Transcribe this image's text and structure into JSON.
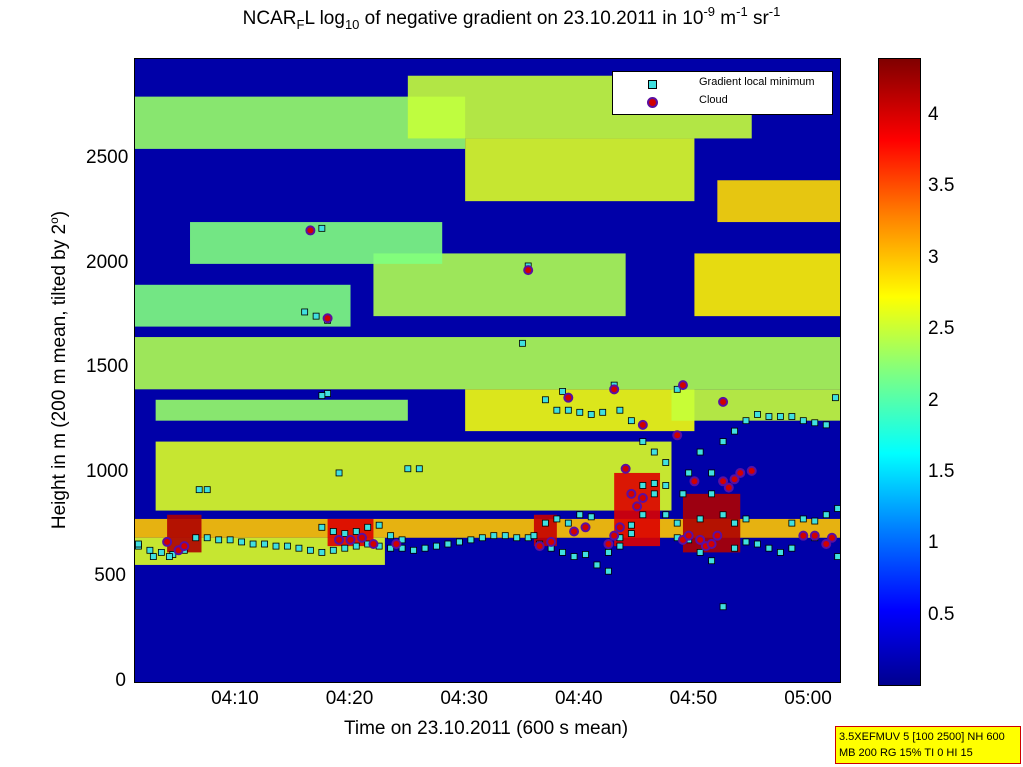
{
  "title_parts": {
    "a": "NCAR",
    "sub1": "F",
    "b": "L log",
    "sub2": "10",
    "c": " of negative gradient on 23.10.2011 in 10",
    "sup1": "-9",
    "d": " m",
    "sup2": "-1",
    "e": " sr",
    "sup3": "-1"
  },
  "ylabel_parts": {
    "a": "Height in m (200 m mean, tilted by 2",
    "sup": "o",
    "b": ")"
  },
  "info": {
    "line1": "3.5XEFMUV 5 [100 2500] NH 600",
    "line2": "MB 200 RG 15% TI 0 HI 15"
  },
  "colors": {
    "cloud_fill": "#d00000",
    "cloud_edge": "#5b0fa0",
    "minimum_fill": "#40e0e0",
    "minimum_edge": "#000000",
    "background": "#0000a8"
  },
  "chart_data": {
    "type": "heatmap",
    "xlabel": "Time on 23.10.2011 (600 s mean)",
    "ylabel": "Height in m (200 m mean, tilted by 2°)",
    "x_ticks": [
      "04:10",
      "04:20",
      "04:30",
      "04:40",
      "04:50",
      "05:00"
    ],
    "y_ticks": [
      0,
      500,
      1000,
      1500,
      2000,
      2500
    ],
    "ylim": [
      0,
      2980
    ],
    "xlim_minutes_after_0400": [
      1.2,
      62.7
    ],
    "colorbar": {
      "ticks": [
        0.5,
        1,
        1.5,
        2,
        2.5,
        3,
        3.5,
        4
      ],
      "range": [
        0,
        4.4
      ],
      "colormap": "jet"
    },
    "legend": {
      "placement": "top-right",
      "entries": [
        "Gradient local minimum",
        "Cloud"
      ]
    },
    "layers": [
      {
        "t0": 1.2,
        "t1": 62.7,
        "h0": 690,
        "h1": 780,
        "v": 3.0
      },
      {
        "t0": 1.2,
        "t1": 23,
        "h0": 560,
        "h1": 690,
        "v": 2.6
      },
      {
        "t0": 3,
        "t1": 48,
        "h0": 820,
        "h1": 1150,
        "v": 2.6
      },
      {
        "t0": 3,
        "t1": 25,
        "h0": 1250,
        "h1": 1350,
        "v": 2.3
      },
      {
        "t0": 30,
        "t1": 50,
        "h0": 1200,
        "h1": 1400,
        "v": 2.7
      },
      {
        "t0": 48,
        "t1": 62.7,
        "h0": 1250,
        "h1": 1400,
        "v": 2.5
      },
      {
        "t0": 1.2,
        "t1": 62.7,
        "h0": 1400,
        "h1": 1650,
        "v": 2.4
      },
      {
        "t0": 1.2,
        "t1": 20,
        "h0": 1700,
        "h1": 1900,
        "v": 2.2
      },
      {
        "t0": 22,
        "t1": 44,
        "h0": 1750,
        "h1": 2050,
        "v": 2.4
      },
      {
        "t0": 50,
        "t1": 62.7,
        "h0": 1750,
        "h1": 2050,
        "v": 2.8
      },
      {
        "t0": 6,
        "t1": 28,
        "h0": 2000,
        "h1": 2200,
        "v": 2.2
      },
      {
        "t0": 30,
        "t1": 50,
        "h0": 2300,
        "h1": 2600,
        "v": 2.6
      },
      {
        "t0": 52,
        "t1": 62.7,
        "h0": 2200,
        "h1": 2400,
        "v": 2.9
      },
      {
        "t0": 1.2,
        "t1": 30,
        "h0": 2550,
        "h1": 2800,
        "v": 2.3
      },
      {
        "t0": 25,
        "t1": 55,
        "h0": 2600,
        "h1": 2900,
        "v": 2.5
      },
      {
        "t0": 4,
        "t1": 7,
        "h0": 620,
        "h1": 800,
        "v": 4.2
      },
      {
        "t0": 18,
        "t1": 22,
        "h0": 650,
        "h1": 780,
        "v": 4.0
      },
      {
        "t0": 36,
        "t1": 38,
        "h0": 650,
        "h1": 800,
        "v": 4.1
      },
      {
        "t0": 43,
        "t1": 47,
        "h0": 650,
        "h1": 1000,
        "v": 4.0
      },
      {
        "t0": 49,
        "t1": 54,
        "h0": 620,
        "h1": 900,
        "v": 4.2
      }
    ],
    "series": [
      {
        "name": "Gradient local minimum",
        "points": [
          [
            1.5,
            650
          ],
          [
            2.5,
            630
          ],
          [
            3.5,
            620
          ],
          [
            4.5,
            610
          ],
          [
            5.5,
            630
          ],
          [
            6.5,
            690
          ],
          [
            7.5,
            690
          ],
          [
            8.5,
            680
          ],
          [
            9.5,
            680
          ],
          [
            10.5,
            670
          ],
          [
            11.5,
            660
          ],
          [
            12.5,
            660
          ],
          [
            13.5,
            650
          ],
          [
            14.5,
            650
          ],
          [
            15.5,
            640
          ],
          [
            16.5,
            630
          ],
          [
            17.5,
            620
          ],
          [
            18.5,
            630
          ],
          [
            19.5,
            640
          ],
          [
            20.5,
            650
          ],
          [
            21.5,
            660
          ],
          [
            22.5,
            650
          ],
          [
            23.5,
            640
          ],
          [
            24.5,
            640
          ],
          [
            25.5,
            630
          ],
          [
            26.5,
            640
          ],
          [
            27.5,
            650
          ],
          [
            28.5,
            660
          ],
          [
            29.5,
            670
          ],
          [
            30.5,
            680
          ],
          [
            31.5,
            690
          ],
          [
            32.5,
            700
          ],
          [
            33.5,
            700
          ],
          [
            34.5,
            690
          ],
          [
            35.5,
            690
          ],
          [
            36.5,
            660
          ],
          [
            37.5,
            640
          ],
          [
            38.5,
            620
          ],
          [
            39.5,
            600
          ],
          [
            40.5,
            610
          ],
          [
            41.5,
            560
          ],
          [
            42.5,
            530
          ],
          [
            43.5,
            690
          ],
          [
            44.5,
            750
          ],
          [
            45.5,
            940
          ],
          [
            46.5,
            950
          ],
          [
            47.5,
            940
          ],
          [
            48.5,
            690
          ],
          [
            49.5,
            680
          ],
          [
            50.5,
            620
          ],
          [
            51.5,
            580
          ],
          [
            52.5,
            360
          ],
          [
            53.5,
            640
          ],
          [
            54.5,
            670
          ],
          [
            55.5,
            660
          ],
          [
            56.5,
            640
          ],
          [
            57.5,
            620
          ],
          [
            58.5,
            640
          ],
          [
            59.5,
            700
          ],
          [
            60.5,
            690
          ],
          [
            61.5,
            660
          ],
          [
            62.5,
            600
          ],
          [
            1.5,
            660
          ],
          [
            2.8,
            600
          ],
          [
            4.2,
            600
          ],
          [
            17.5,
            740
          ],
          [
            18.5,
            720
          ],
          [
            19.5,
            710
          ],
          [
            20.5,
            720
          ],
          [
            21.5,
            740
          ],
          [
            22.5,
            750
          ],
          [
            23.5,
            700
          ],
          [
            24.5,
            680
          ],
          [
            36,
            700
          ],
          [
            37,
            760
          ],
          [
            38,
            780
          ],
          [
            39,
            760
          ],
          [
            40,
            800
          ],
          [
            41,
            790
          ],
          [
            42.5,
            620
          ],
          [
            43.5,
            650
          ],
          [
            44.5,
            710
          ],
          [
            45.5,
            800
          ],
          [
            46.5,
            900
          ],
          [
            47.5,
            800
          ],
          [
            48.5,
            760
          ],
          [
            49,
            900
          ],
          [
            50.5,
            780
          ],
          [
            51.5,
            900
          ],
          [
            52.5,
            800
          ],
          [
            53.5,
            760
          ],
          [
            54.5,
            780
          ],
          [
            58.5,
            760
          ],
          [
            59.5,
            780
          ],
          [
            60.5,
            770
          ],
          [
            61.5,
            800
          ],
          [
            62.5,
            830
          ],
          [
            6.8,
            920
          ],
          [
            7.5,
            920
          ],
          [
            19,
            1000
          ],
          [
            25,
            1020
          ],
          [
            26,
            1020
          ],
          [
            37,
            1350
          ],
          [
            38,
            1300
          ],
          [
            39,
            1300
          ],
          [
            40,
            1290
          ],
          [
            41,
            1280
          ],
          [
            42,
            1290
          ],
          [
            43,
            1420
          ],
          [
            43.5,
            1300
          ],
          [
            44.5,
            1250
          ],
          [
            45.5,
            1150
          ],
          [
            46.5,
            1100
          ],
          [
            47.5,
            1050
          ],
          [
            48.5,
            1400
          ],
          [
            49.5,
            1000
          ],
          [
            50.5,
            1100
          ],
          [
            51.5,
            1000
          ],
          [
            52.5,
            1150
          ],
          [
            53.5,
            1200
          ],
          [
            54.5,
            1250
          ],
          [
            55.5,
            1280
          ],
          [
            56.5,
            1270
          ],
          [
            57.5,
            1270
          ],
          [
            58.5,
            1270
          ],
          [
            59.5,
            1250
          ],
          [
            60.5,
            1240
          ],
          [
            61.5,
            1230
          ],
          [
            62.3,
            1360
          ],
          [
            16,
            1770
          ],
          [
            17,
            1750
          ],
          [
            18,
            1730
          ],
          [
            16.5,
            2160
          ],
          [
            17.5,
            2170
          ],
          [
            18,
            1380
          ],
          [
            17.5,
            1370
          ],
          [
            35,
            1620
          ],
          [
            35.5,
            1990
          ],
          [
            38.5,
            1390
          ]
        ]
      },
      {
        "name": "Cloud",
        "points": [
          [
            4,
            670
          ],
          [
            5,
            630
          ],
          [
            5.5,
            650
          ],
          [
            19,
            680
          ],
          [
            20,
            680
          ],
          [
            21,
            690
          ],
          [
            22,
            660
          ],
          [
            24,
            660
          ],
          [
            36.5,
            650
          ],
          [
            37.5,
            670
          ],
          [
            39.5,
            720
          ],
          [
            40.5,
            740
          ],
          [
            42.5,
            660
          ],
          [
            43,
            700
          ],
          [
            43.5,
            740
          ],
          [
            44,
            1020
          ],
          [
            44.5,
            900
          ],
          [
            45,
            840
          ],
          [
            45.5,
            880
          ],
          [
            49,
            680
          ],
          [
            49.5,
            700
          ],
          [
            50,
            960
          ],
          [
            50.5,
            680
          ],
          [
            51,
            650
          ],
          [
            51.5,
            660
          ],
          [
            52,
            700
          ],
          [
            52.5,
            960
          ],
          [
            53,
            930
          ],
          [
            53.5,
            970
          ],
          [
            54,
            1000
          ],
          [
            55,
            1010
          ],
          [
            59.5,
            700
          ],
          [
            60.5,
            700
          ],
          [
            61.5,
            660
          ],
          [
            62,
            690
          ],
          [
            39,
            1360
          ],
          [
            43,
            1400
          ],
          [
            49,
            1420
          ],
          [
            52.5,
            1340
          ],
          [
            16.5,
            2160
          ],
          [
            35.5,
            1970
          ],
          [
            18,
            1740
          ],
          [
            45.5,
            1230
          ],
          [
            48.5,
            1180
          ]
        ]
      }
    ]
  }
}
